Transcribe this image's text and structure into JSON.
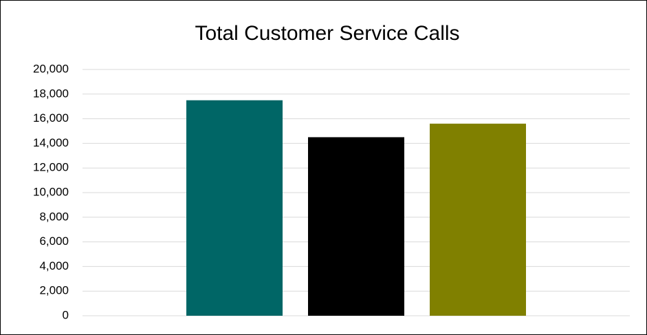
{
  "chart_data": {
    "type": "bar",
    "title": "Total Customer Service Calls",
    "categories": [
      null,
      null,
      null
    ],
    "values": [
      17500,
      14500,
      15600
    ],
    "colors": [
      "#006666",
      "#000000",
      "#808000"
    ],
    "ylim": [
      0,
      20000
    ],
    "yticks": [
      0,
      {
        "value": 2000,
        "label": "2,000"
      },
      {
        "value": 4000,
        "label": "4,000"
      },
      {
        "value": 6000,
        "label": "6,000"
      },
      {
        "value": 8000,
        "label": "8,000"
      },
      {
        "value": 10000,
        "label": "10,000"
      },
      {
        "value": 12000,
        "label": "12,000"
      },
      {
        "value": 14000,
        "label": "14,000"
      },
      {
        "value": 16000,
        "label": "16,000"
      },
      {
        "value": 18000,
        "label": "18,000"
      },
      {
        "value": 20000,
        "label": "20,000"
      }
    ],
    "grid": true
  }
}
